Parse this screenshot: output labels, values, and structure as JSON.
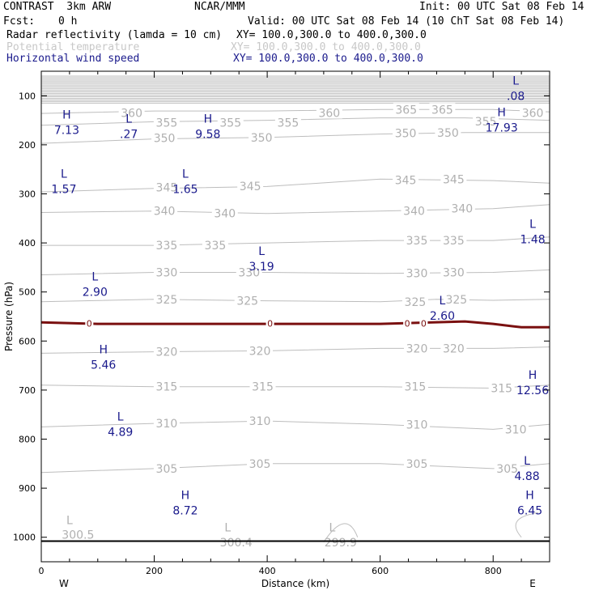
{
  "header": {
    "model": "CONTRAST  3km ARW",
    "center": "NCAR/MMM",
    "init": "Init: 00 UTC Sat 08 Feb 14",
    "fcst_label": "Fcst:",
    "fcst_value": "0 h",
    "valid": "Valid: 00 UTC Sat 08 Feb 14 (10 ChT Sat 08 Feb 14)",
    "fields": [
      {
        "name": "Radar reflectivity (lamda = 10 cm)",
        "xy": "XY= 100.0,300.0 to 400.0,300.0",
        "color": "#000000"
      },
      {
        "name": "Potential temperature",
        "xy": "XY= 100.0,300.0 to 400.0,300.0",
        "color": "#c8c8c8"
      },
      {
        "name": "Horizontal wind speed",
        "xy": "XY= 100.0,300.0 to 400.0,300.0",
        "color": "#1a1a8c"
      }
    ]
  },
  "colors": {
    "theta": "#bdbdbd",
    "theta_label": "#b0b0b0",
    "wind": "#1a1a8c",
    "zero_line": "#7a1010",
    "axis": "#000000"
  },
  "chart_data": {
    "type": "line",
    "xlabel": "Distance (km)",
    "ylabel": "Pressure (hPa)",
    "xlim": [
      0,
      900
    ],
    "ylim": [
      1050,
      50
    ],
    "x_ticks": [
      0,
      200,
      400,
      600,
      800
    ],
    "x_tick_labels": [
      "0",
      "200",
      "400",
      "600",
      "800"
    ],
    "y_ticks": [
      100,
      200,
      300,
      400,
      500,
      600,
      700,
      800,
      900,
      1000
    ],
    "y_tick_labels": [
      "100",
      "200",
      "300",
      "400",
      "500",
      "600",
      "700",
      "800",
      "900",
      "1000"
    ],
    "side_labels": {
      "left": "W",
      "right": "E"
    },
    "surface_pressure": 1008,
    "theta_contours": [
      {
        "value": 360,
        "points": [
          [
            0,
            136
          ],
          [
            200,
            131
          ],
          [
            400,
            131
          ],
          [
            600,
            128
          ],
          [
            800,
            128
          ],
          [
            900,
            133
          ]
        ],
        "labels": [
          {
            "text": "360",
            "x": 160,
            "p": 135
          },
          {
            "text": "360",
            "x": 510,
            "p": 135
          },
          {
            "text": "360",
            "x": 870,
            "p": 135
          }
        ]
      },
      {
        "value": 355,
        "points": [
          [
            0,
            160
          ],
          [
            200,
            153
          ],
          [
            400,
            150
          ],
          [
            600,
            145
          ],
          [
            750,
            145
          ],
          [
            900,
            150
          ]
        ],
        "labels": [
          {
            "text": "355",
            "x": 222,
            "p": 155
          },
          {
            "text": "355",
            "x": 335,
            "p": 155
          },
          {
            "text": "355",
            "x": 437,
            "p": 155
          },
          {
            "text": "365",
            "x": 646,
            "p": 128
          },
          {
            "text": "365",
            "x": 710,
            "p": 128
          },
          {
            "text": "355",
            "x": 787,
            "p": 152
          }
        ]
      },
      {
        "value": 350,
        "points": [
          [
            0,
            197
          ],
          [
            200,
            188
          ],
          [
            400,
            185
          ],
          [
            600,
            178
          ],
          [
            750,
            175
          ],
          [
            900,
            175
          ]
        ],
        "labels": [
          {
            "text": "350",
            "x": 218,
            "p": 186
          },
          {
            "text": "350",
            "x": 390,
            "p": 185
          },
          {
            "text": "350",
            "x": 645,
            "p": 176
          },
          {
            "text": "350",
            "x": 720,
            "p": 175
          }
        ]
      },
      {
        "value": 345,
        "points": [
          [
            0,
            296
          ],
          [
            200,
            289
          ],
          [
            400,
            285
          ],
          [
            600,
            270
          ],
          [
            800,
            273
          ],
          [
            900,
            278
          ]
        ],
        "labels": [
          {
            "text": "345",
            "x": 222,
            "p": 287
          },
          {
            "text": "345",
            "x": 370,
            "p": 284
          },
          {
            "text": "345",
            "x": 645,
            "p": 272
          },
          {
            "text": "345",
            "x": 730,
            "p": 270
          }
        ]
      },
      {
        "value": 340,
        "points": [
          [
            0,
            338
          ],
          [
            200,
            335
          ],
          [
            400,
            340
          ],
          [
            600,
            335
          ],
          [
            800,
            330
          ],
          [
            900,
            322
          ]
        ],
        "labels": [
          {
            "text": "340",
            "x": 218,
            "p": 335
          },
          {
            "text": "340",
            "x": 325,
            "p": 340
          },
          {
            "text": "340",
            "x": 660,
            "p": 335
          },
          {
            "text": "340",
            "x": 745,
            "p": 330
          }
        ]
      },
      {
        "value": 335,
        "points": [
          [
            0,
            405
          ],
          [
            200,
            405
          ],
          [
            400,
            400
          ],
          [
            600,
            395
          ],
          [
            800,
            395
          ],
          [
            900,
            388
          ]
        ],
        "labels": [
          {
            "text": "335",
            "x": 222,
            "p": 405
          },
          {
            "text": "335",
            "x": 308,
            "p": 405
          },
          {
            "text": "335",
            "x": 665,
            "p": 395
          },
          {
            "text": "335",
            "x": 730,
            "p": 395
          }
        ]
      },
      {
        "value": 330,
        "points": [
          [
            0,
            465
          ],
          [
            200,
            460
          ],
          [
            400,
            460
          ],
          [
            600,
            462
          ],
          [
            800,
            460
          ],
          [
            900,
            455
          ]
        ],
        "labels": [
          {
            "text": "330",
            "x": 222,
            "p": 460
          },
          {
            "text": "330",
            "x": 368,
            "p": 460
          },
          {
            "text": "330",
            "x": 665,
            "p": 462
          },
          {
            "text": "330",
            "x": 730,
            "p": 460
          }
        ]
      },
      {
        "value": 325,
        "points": [
          [
            0,
            520
          ],
          [
            200,
            515
          ],
          [
            400,
            518
          ],
          [
            600,
            520
          ],
          [
            700,
            515
          ],
          [
            800,
            517
          ],
          [
            900,
            515
          ]
        ],
        "labels": [
          {
            "text": "325",
            "x": 222,
            "p": 515
          },
          {
            "text": "325",
            "x": 365,
            "p": 518
          },
          {
            "text": "325",
            "x": 662,
            "p": 520
          },
          {
            "text": "325",
            "x": 735,
            "p": 515
          }
        ]
      },
      {
        "value": 320,
        "points": [
          [
            0,
            625
          ],
          [
            200,
            622
          ],
          [
            400,
            620
          ],
          [
            600,
            615
          ],
          [
            800,
            615
          ],
          [
            900,
            612
          ]
        ],
        "labels": [
          {
            "text": "320",
            "x": 222,
            "p": 622
          },
          {
            "text": "320",
            "x": 387,
            "p": 620
          },
          {
            "text": "320",
            "x": 665,
            "p": 615
          },
          {
            "text": "320",
            "x": 730,
            "p": 615
          }
        ]
      },
      {
        "value": 315,
        "points": [
          [
            0,
            690
          ],
          [
            200,
            693
          ],
          [
            400,
            693
          ],
          [
            600,
            693
          ],
          [
            800,
            696
          ],
          [
            900,
            690
          ]
        ],
        "labels": [
          {
            "text": "315",
            "x": 222,
            "p": 693
          },
          {
            "text": "315",
            "x": 392,
            "p": 693
          },
          {
            "text": "315",
            "x": 662,
            "p": 693
          },
          {
            "text": "315",
            "x": 815,
            "p": 696
          }
        ]
      },
      {
        "value": 310,
        "points": [
          [
            0,
            775
          ],
          [
            200,
            768
          ],
          [
            400,
            763
          ],
          [
            600,
            770
          ],
          [
            800,
            780
          ],
          [
            900,
            770
          ]
        ],
        "labels": [
          {
            "text": "310",
            "x": 222,
            "p": 768
          },
          {
            "text": "310",
            "x": 387,
            "p": 763
          },
          {
            "text": "310",
            "x": 665,
            "p": 770
          },
          {
            "text": "310",
            "x": 840,
            "p": 780
          }
        ]
      },
      {
        "value": 305,
        "points": [
          [
            0,
            868
          ],
          [
            200,
            860
          ],
          [
            400,
            850
          ],
          [
            600,
            850
          ],
          [
            800,
            860
          ],
          [
            900,
            850
          ]
        ],
        "labels": [
          {
            "text": "305",
            "x": 222,
            "p": 860
          },
          {
            "text": "305",
            "x": 387,
            "p": 850
          },
          {
            "text": "305",
            "x": 665,
            "p": 850
          },
          {
            "text": "305",
            "x": 825,
            "p": 860
          }
        ]
      }
    ],
    "upper_theta_band": {
      "from_p": 60,
      "to_p": 115,
      "count": 18
    },
    "surface_theta_labels": [
      {
        "text": "L",
        "x": 50,
        "p": 965
      },
      {
        "text": "300.5",
        "x": 65,
        "p": 995
      },
      {
        "text": "L",
        "x": 330,
        "p": 980
      },
      {
        "text": "300.4",
        "x": 345,
        "p": 1010
      },
      {
        "text": "L",
        "x": 515,
        "p": 980
      },
      {
        "text": "299.9",
        "x": 530,
        "p": 1010
      }
    ],
    "zero_reflectivity_line": {
      "points": [
        [
          0,
          562
        ],
        [
          100,
          565
        ],
        [
          200,
          565
        ],
        [
          400,
          565
        ],
        [
          600,
          565
        ],
        [
          750,
          560
        ],
        [
          800,
          565
        ],
        [
          850,
          572
        ],
        [
          900,
          572
        ]
      ],
      "labels": [
        {
          "text": "0",
          "x": 85,
          "p": 564
        },
        {
          "text": "0",
          "x": 405,
          "p": 564
        },
        {
          "text": "0",
          "x": 648,
          "p": 564
        },
        {
          "text": "0",
          "x": 677,
          "p": 564
        }
      ]
    },
    "wind_extrema": [
      {
        "type": "H",
        "value": "7.13",
        "x": 45,
        "p": 170
      },
      {
        "type": "L",
        "value": ".27",
        "x": 155,
        "p": 178
      },
      {
        "type": "H",
        "value": "9.58",
        "x": 295,
        "p": 178
      },
      {
        "type": "L",
        "value": ".08",
        "x": 840,
        "p": 100
      },
      {
        "type": "H",
        "value": "17.93",
        "x": 815,
        "p": 165
      },
      {
        "type": "L",
        "value": "1.57",
        "x": 40,
        "p": 290
      },
      {
        "type": "L",
        "value": "1.65",
        "x": 255,
        "p": 290
      },
      {
        "type": "L",
        "value": "1.48",
        "x": 870,
        "p": 392
      },
      {
        "type": "L",
        "value": "3.19",
        "x": 390,
        "p": 448
      },
      {
        "type": "L",
        "value": "2.90",
        "x": 95,
        "p": 500
      },
      {
        "type": "L",
        "value": "2.60",
        "x": 710,
        "p": 548
      },
      {
        "type": "H",
        "value": "5.46",
        "x": 110,
        "p": 648
      },
      {
        "type": "H",
        "value": "12.56",
        "x": 870,
        "p": 700
      },
      {
        "type": "L",
        "value": "4.89",
        "x": 140,
        "p": 785
      },
      {
        "type": "L",
        "value": "4.88",
        "x": 860,
        "p": 875
      },
      {
        "type": "H",
        "value": "8.72",
        "x": 255,
        "p": 945
      },
      {
        "type": "H",
        "value": "6.45",
        "x": 865,
        "p": 945
      }
    ]
  }
}
